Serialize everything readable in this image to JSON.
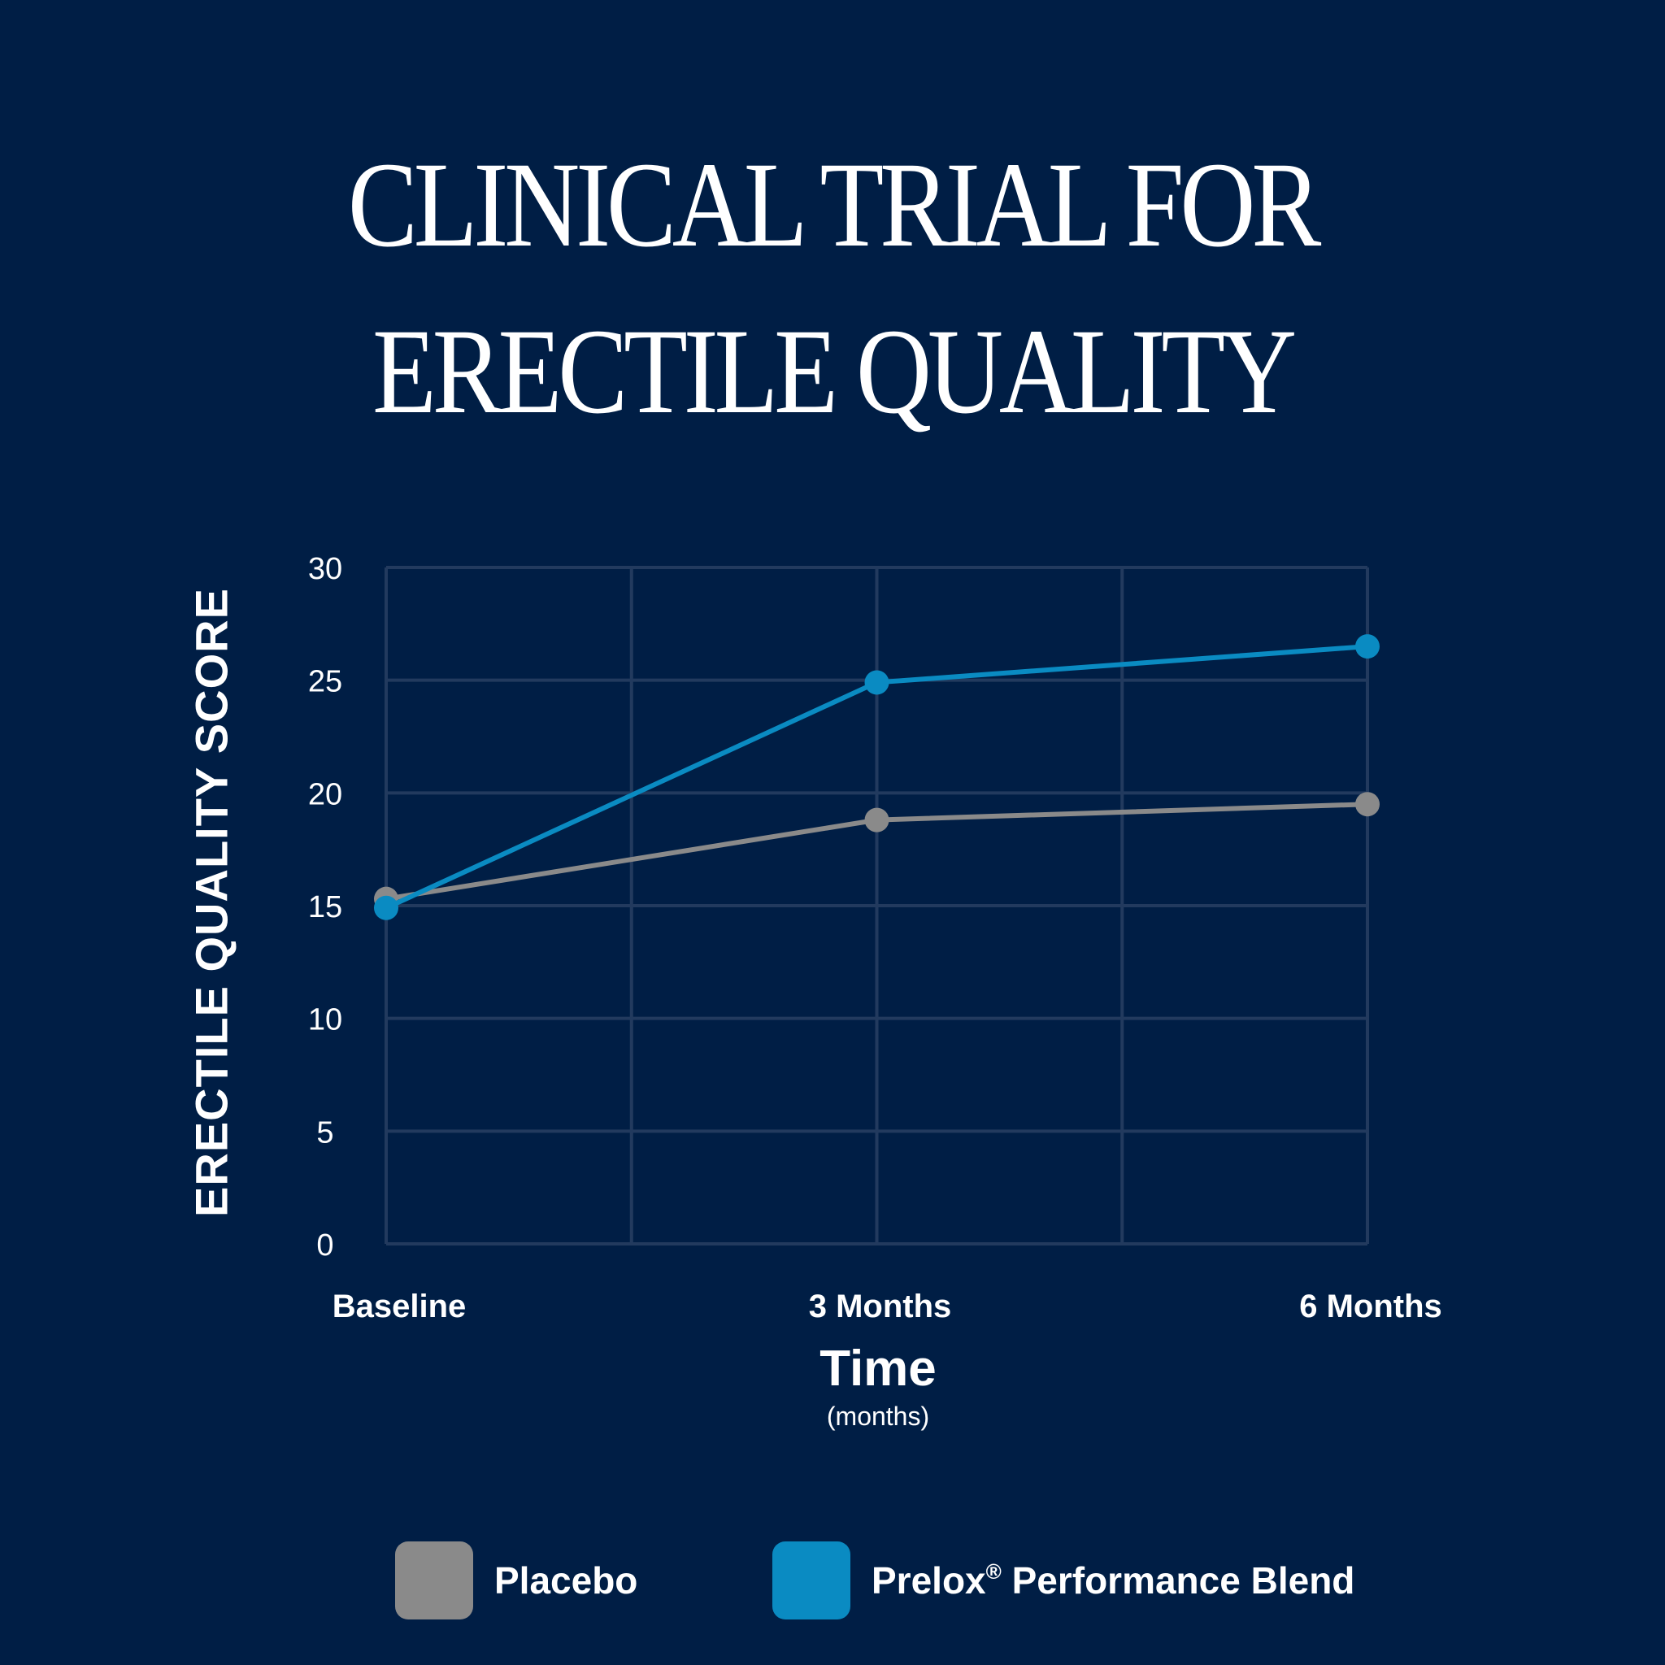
{
  "title_lines": [
    "CLINICAL TRIAL FOR",
    "ERECTILE QUALITY"
  ],
  "colors": {
    "background": "#001e45",
    "grid": "#223a5e",
    "placebo": "#8a8a8a",
    "blend": "#0a8bc2",
    "text": "#ffffff"
  },
  "chart_data": {
    "type": "line",
    "title": "CLINICAL TRIAL FOR ERECTILE QUALITY",
    "ylabel": "ERECTILE QUALITY SCORE",
    "xlabel": "Time",
    "xlabel_unit": "(months)",
    "categories": [
      "Baseline",
      "3 Months",
      "6 Months"
    ],
    "ylim": [
      0,
      30
    ],
    "yticks": [
      0,
      5,
      10,
      15,
      20,
      25,
      30
    ],
    "grid": true,
    "legend_position": "bottom",
    "series": [
      {
        "name": "Placebo",
        "values": [
          15.3,
          18.8,
          19.5
        ],
        "color": "#8a8a8a"
      },
      {
        "name": "Prelox® Performance Blend",
        "values": [
          14.9,
          24.9,
          26.5
        ],
        "color": "#0a8bc2"
      }
    ]
  },
  "legend": {
    "placebo_label": "Placebo",
    "blend_label_main": "Prelox",
    "blend_label_mark": "®",
    "blend_label_rest": " Performance Blend"
  }
}
